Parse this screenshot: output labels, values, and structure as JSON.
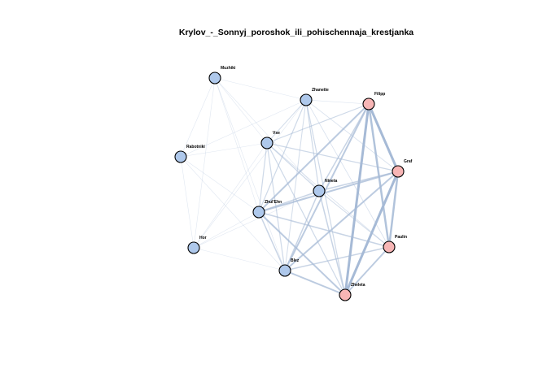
{
  "graph": {
    "title": "Krylov_-_Sonnyj_poroshok_ili_pohischennaja_krestjanka",
    "colors": {
      "group_blue": "#aec8eb",
      "group_pink": "#f7b5b5",
      "edge": "#a6bad6"
    },
    "nodes": [
      {
        "id": "Muzhiki",
        "label": "Muzhiki",
        "group": "blue"
      },
      {
        "id": "Zhanette",
        "label": "Zhanette",
        "group": "blue"
      },
      {
        "id": "Filipp",
        "label": "Filipp",
        "group": "pink"
      },
      {
        "id": "Rabotniki",
        "label": "Rabotniki",
        "group": "blue"
      },
      {
        "id": "Vse",
        "label": "Vse",
        "group": "blue"
      },
      {
        "id": "Graf",
        "label": "Graf",
        "group": "pink"
      },
      {
        "id": "Nineta",
        "label": "Nineta",
        "group": "blue"
      },
      {
        "id": "Zhulien",
        "label": "Zhul'Ehn",
        "group": "blue"
      },
      {
        "id": "Paulin",
        "label": "Paulin",
        "group": "pink"
      },
      {
        "id": "Hor",
        "label": "Hor",
        "group": "blue"
      },
      {
        "id": "Blez",
        "label": "Blez",
        "group": "blue"
      },
      {
        "id": "Zheleta",
        "label": "Zheleta",
        "group": "pink"
      }
    ],
    "edges": [
      {
        "source": "Filipp",
        "target": "Graf",
        "weight": 3
      },
      {
        "source": "Filipp",
        "target": "Zheleta",
        "weight": 3
      },
      {
        "source": "Filipp",
        "target": "Paulin",
        "weight": 2.5
      },
      {
        "source": "Filipp",
        "target": "Blez",
        "weight": 2
      },
      {
        "source": "Filipp",
        "target": "Zhulien",
        "weight": 2
      },
      {
        "source": "Filipp",
        "target": "Nineta",
        "weight": 1.5
      },
      {
        "source": "Filipp",
        "target": "Vse",
        "weight": 1.2
      },
      {
        "source": "Filipp",
        "target": "Zhanette",
        "weight": 0.6
      },
      {
        "source": "Graf",
        "target": "Zheleta",
        "weight": 3
      },
      {
        "source": "Graf",
        "target": "Paulin",
        "weight": 2.5
      },
      {
        "source": "Graf",
        "target": "Blez",
        "weight": 2
      },
      {
        "source": "Graf",
        "target": "Zhulien",
        "weight": 2
      },
      {
        "source": "Graf",
        "target": "Nineta",
        "weight": 1.5
      },
      {
        "source": "Graf",
        "target": "Vse",
        "weight": 1.2
      },
      {
        "source": "Graf",
        "target": "Zhanette",
        "weight": 0.8
      },
      {
        "source": "Paulin",
        "target": "Zheleta",
        "weight": 2
      },
      {
        "source": "Paulin",
        "target": "Blez",
        "weight": 1.5
      },
      {
        "source": "Paulin",
        "target": "Zhulien",
        "weight": 1.5
      },
      {
        "source": "Paulin",
        "target": "Nineta",
        "weight": 1
      },
      {
        "source": "Paulin",
        "target": "Zhanette",
        "weight": 0.8
      },
      {
        "source": "Paulin",
        "target": "Vse",
        "weight": 0.8
      },
      {
        "source": "Zheleta",
        "target": "Blez",
        "weight": 2
      },
      {
        "source": "Zheleta",
        "target": "Zhulien",
        "weight": 2
      },
      {
        "source": "Zheleta",
        "target": "Nineta",
        "weight": 1.5
      },
      {
        "source": "Zheleta",
        "target": "Vse",
        "weight": 1.2
      },
      {
        "source": "Zheleta",
        "target": "Zhanette",
        "weight": 1.2
      },
      {
        "source": "Blez",
        "target": "Nineta",
        "weight": 1.5
      },
      {
        "source": "Blez",
        "target": "Zhulien",
        "weight": 1.5
      },
      {
        "source": "Blez",
        "target": "Vse",
        "weight": 1.2
      },
      {
        "source": "Blez",
        "target": "Zhanette",
        "weight": 1
      },
      {
        "source": "Blez",
        "target": "Hor",
        "weight": 0.4
      },
      {
        "source": "Zhulien",
        "target": "Nineta",
        "weight": 1.5
      },
      {
        "source": "Zhulien",
        "target": "Vse",
        "weight": 1.2
      },
      {
        "source": "Zhulien",
        "target": "Zhanette",
        "weight": 1.2
      },
      {
        "source": "Zhulien",
        "target": "Hor",
        "weight": 0.4
      },
      {
        "source": "Zhulien",
        "target": "Rabotniki",
        "weight": 0.4
      },
      {
        "source": "Zhulien",
        "target": "Muzhiki",
        "weight": 0.4
      },
      {
        "source": "Nineta",
        "target": "Vse",
        "weight": 1.2
      },
      {
        "source": "Nineta",
        "target": "Zhanette",
        "weight": 1.2
      },
      {
        "source": "Nineta",
        "target": "Muzhiki",
        "weight": 0.4
      },
      {
        "source": "Vse",
        "target": "Zhanette",
        "weight": 1
      },
      {
        "source": "Vse",
        "target": "Muzhiki",
        "weight": 0.4
      },
      {
        "source": "Vse",
        "target": "Rabotniki",
        "weight": 0.4
      },
      {
        "source": "Vse",
        "target": "Hor",
        "weight": 0.4
      },
      {
        "source": "Muzhiki",
        "target": "Zhanette",
        "weight": 0.4
      },
      {
        "source": "Muzhiki",
        "target": "Rabotniki",
        "weight": 0.4
      },
      {
        "source": "Muzhiki",
        "target": "Hor",
        "weight": 0.4
      },
      {
        "source": "Muzhiki",
        "target": "Blez",
        "weight": 0.4
      },
      {
        "source": "Rabotniki",
        "target": "Hor",
        "weight": 0.4
      },
      {
        "source": "Rabotniki",
        "target": "Blez",
        "weight": 0.4
      },
      {
        "source": "Rabotniki",
        "target": "Zhanette",
        "weight": 0.4
      },
      {
        "source": "Hor",
        "target": "Zhanette",
        "weight": 0.4
      },
      {
        "source": "Hor",
        "target": "Nineta",
        "weight": 0.4
      }
    ]
  }
}
